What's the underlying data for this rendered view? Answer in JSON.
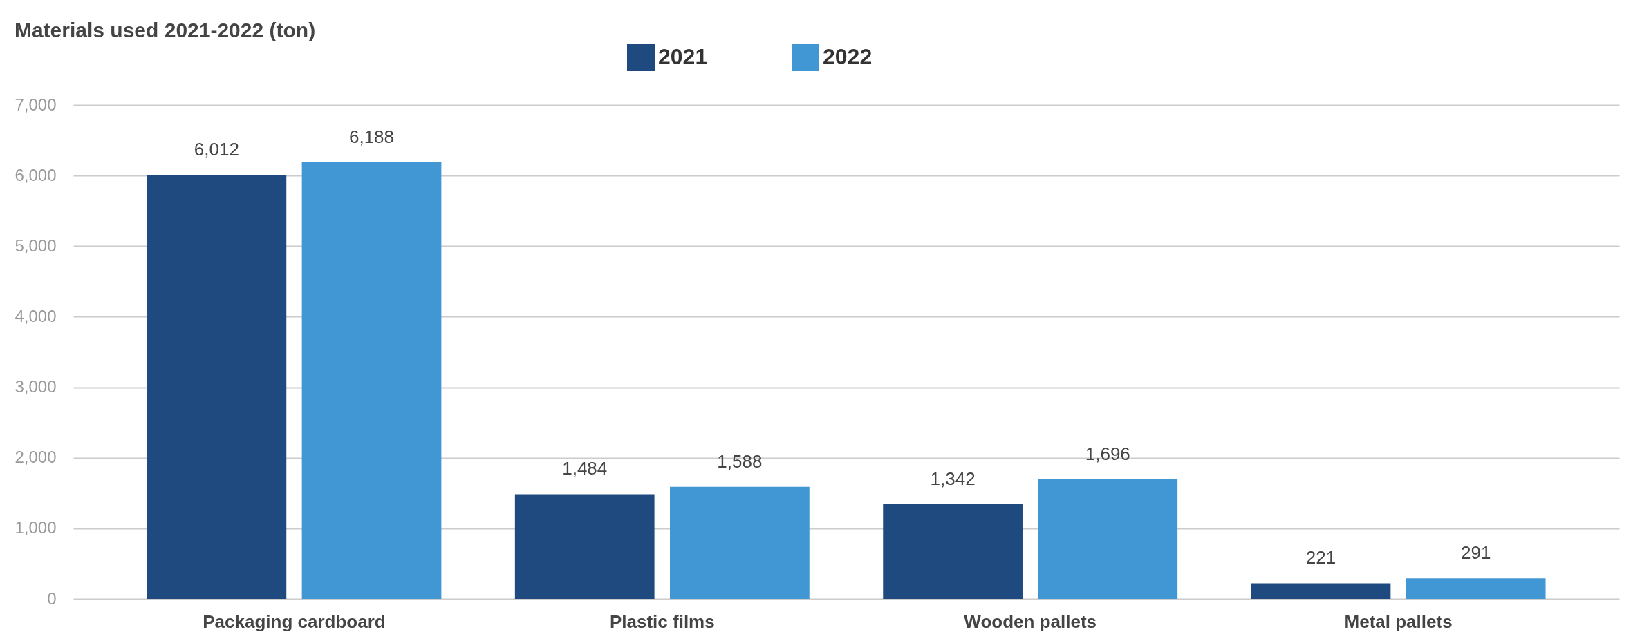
{
  "chart_data": {
    "type": "bar",
    "title": "Materials used 2021-2022 (ton)",
    "categories": [
      "Packaging cardboard",
      "Plastic films",
      "Wooden pallets",
      "Metal pallets"
    ],
    "series": [
      {
        "name": "2021",
        "color": "#1f4a80",
        "values": [
          6012,
          1484,
          1342,
          221
        ],
        "value_labels": [
          "6,012",
          "1,484",
          "1,342",
          "221"
        ]
      },
      {
        "name": "2022",
        "color": "#4197d3",
        "values": [
          6188,
          1588,
          1696,
          291
        ],
        "value_labels": [
          "6,188",
          "1,588",
          "1,696",
          "291"
        ]
      }
    ],
    "ylim": [
      0,
      7000
    ],
    "yticks": [
      0,
      {
        "value": 1000,
        "label": "1,000"
      },
      {
        "value": 2000,
        "label": "2,000"
      },
      {
        "value": 3000,
        "label": "3,000"
      },
      {
        "value": 4000,
        "label": "4,000"
      },
      {
        "value": 5000,
        "label": "5,000"
      },
      {
        "value": 6000,
        "label": "6,000"
      },
      {
        "value": 7000,
        "label": "7,000"
      }
    ],
    "grid": "y",
    "legend": "top"
  }
}
